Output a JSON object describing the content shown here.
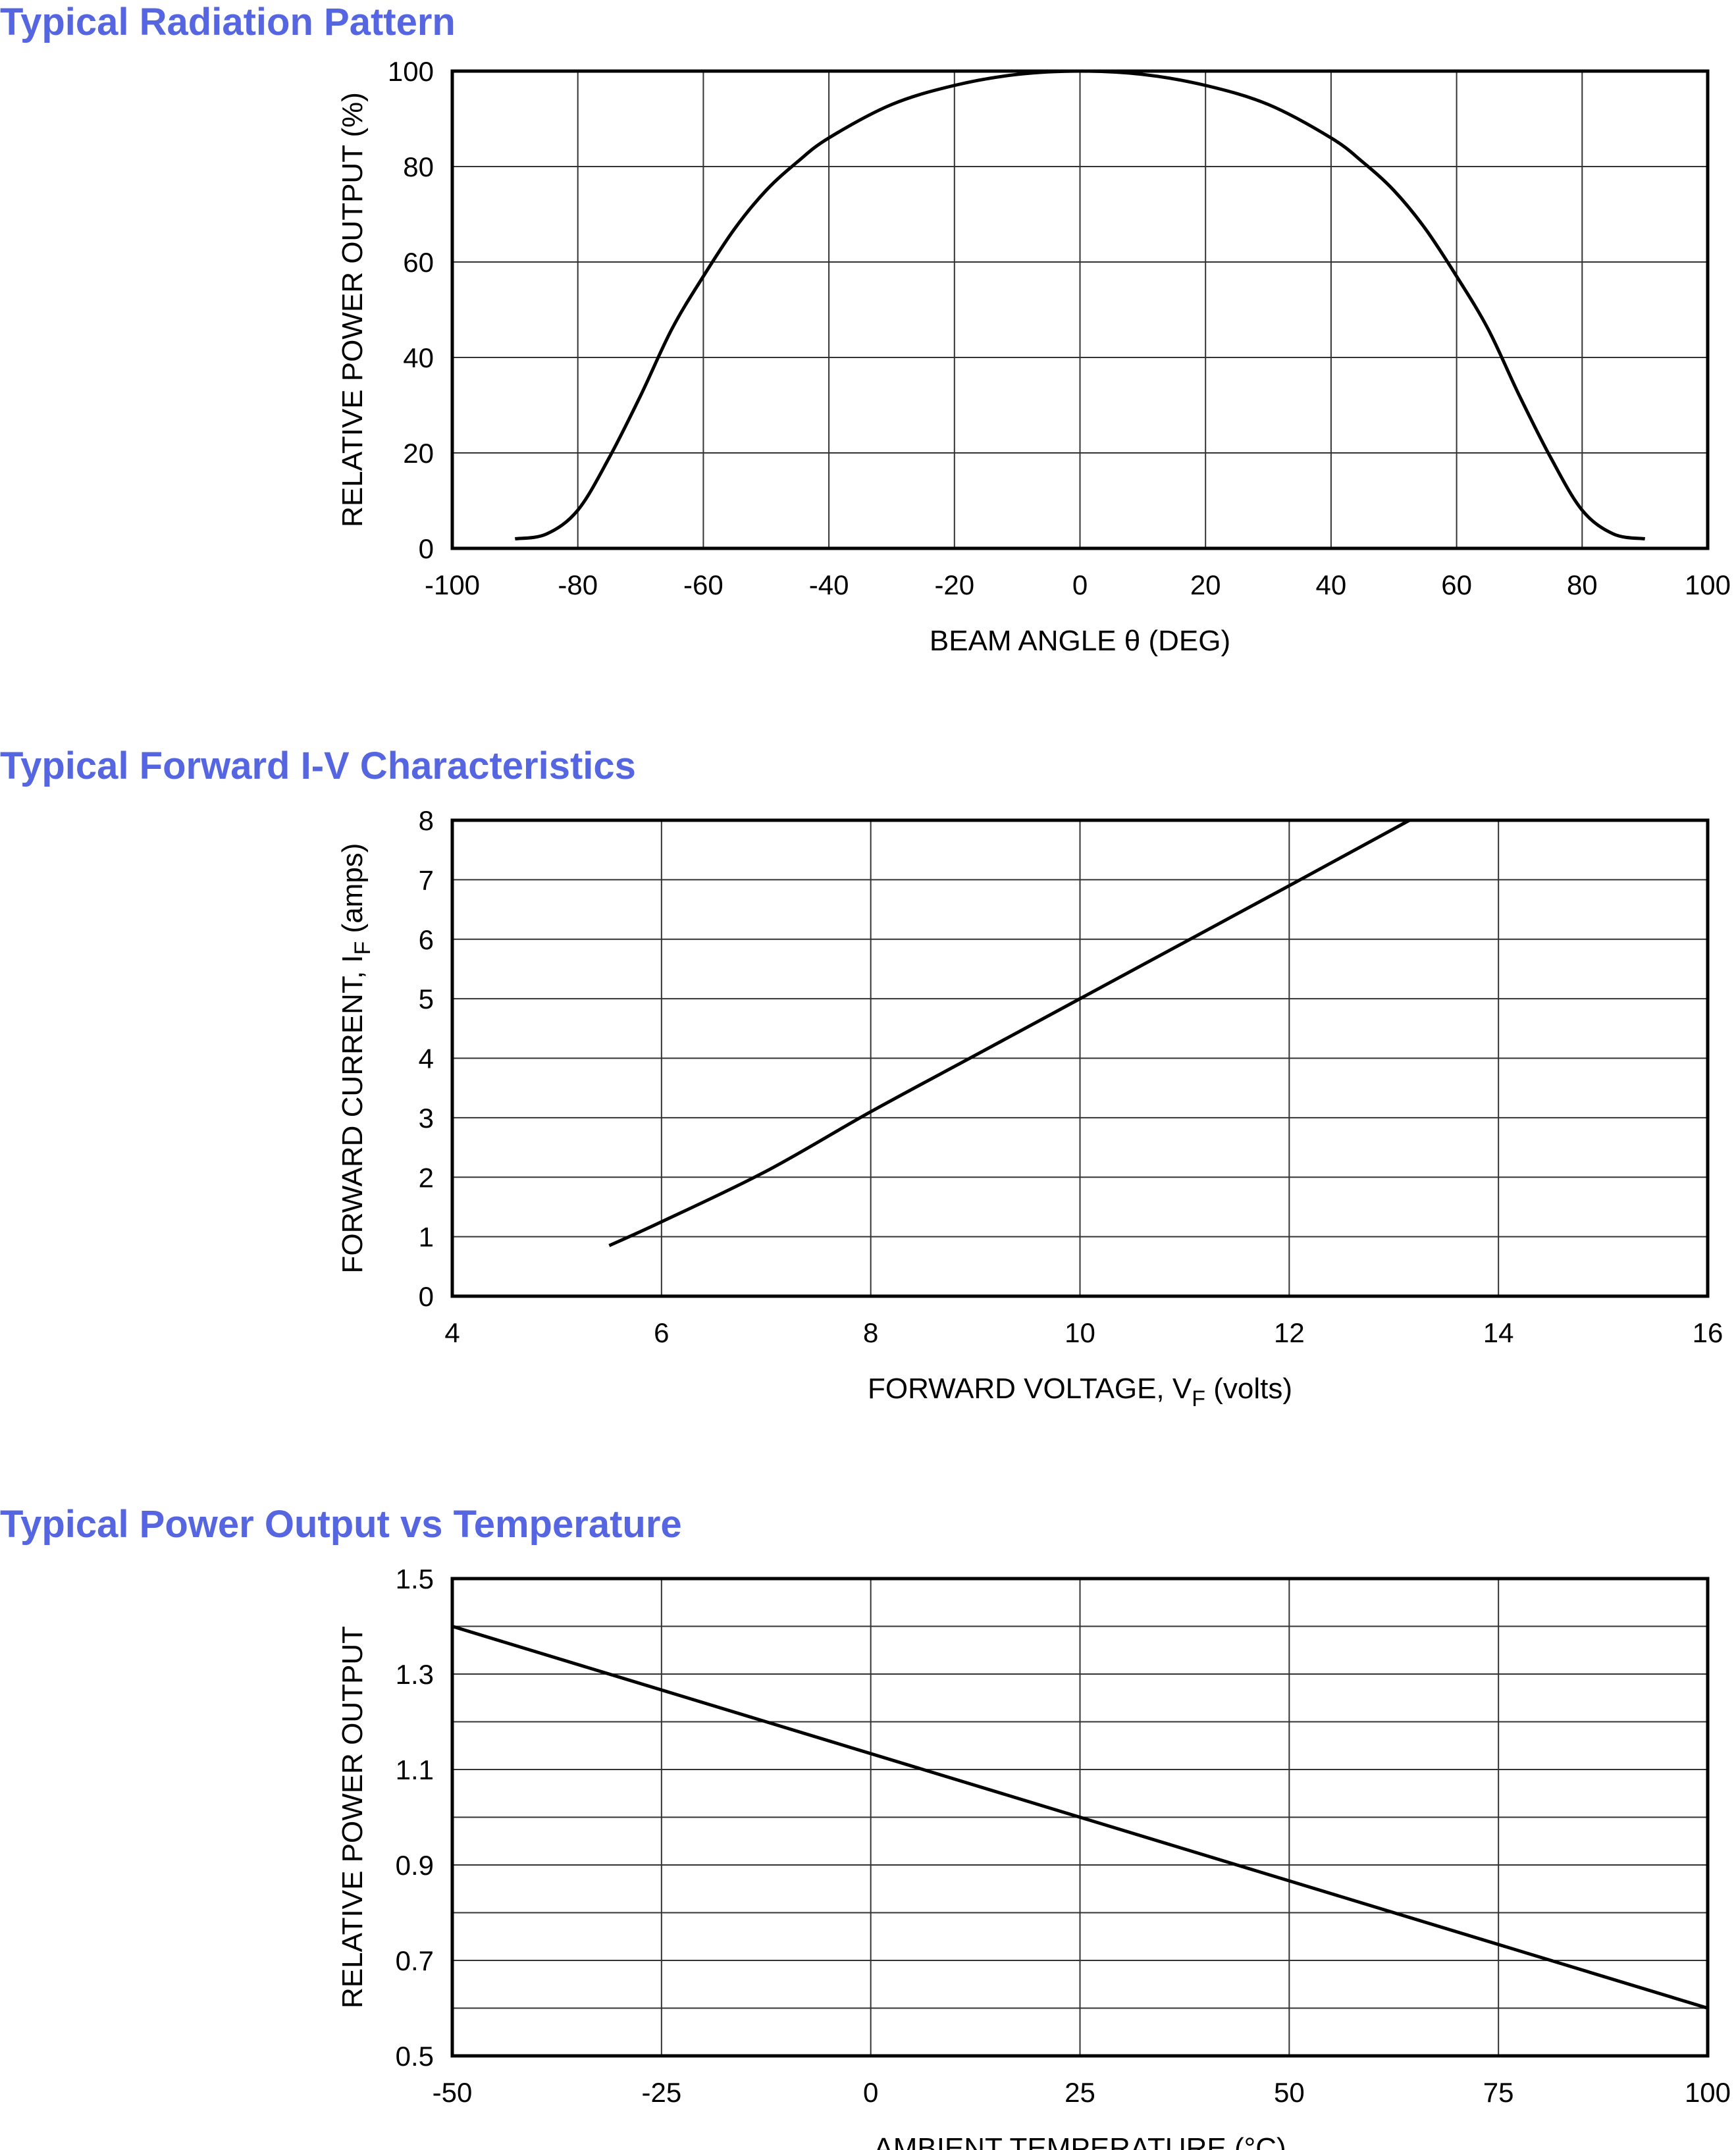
{
  "colors": {
    "title": "#5566e0",
    "line": "#000000",
    "grid": "#333333"
  },
  "chart_data": [
    {
      "type": "line",
      "title": "Typical Radiation Pattern",
      "xlabel": "BEAM ANGLE θ (DEG)",
      "ylabel": "RELATIVE POWER OUTPUT (%)",
      "xlim": [
        -100,
        100
      ],
      "ylim": [
        0,
        100
      ],
      "xticks": [
        -100,
        -80,
        -60,
        -40,
        -20,
        0,
        20,
        40,
        60,
        80,
        100
      ],
      "yticks": [
        0,
        20,
        40,
        60,
        80,
        100
      ],
      "xgrid_step": 20,
      "ygrid_step": 20,
      "grid": true,
      "x": [
        -90,
        -85,
        -80,
        -75,
        -70,
        -65,
        -60,
        -55,
        -50,
        -45,
        -40,
        -30,
        -20,
        -10,
        0,
        10,
        20,
        30,
        40,
        45,
        50,
        55,
        60,
        65,
        70,
        75,
        80,
        85,
        90
      ],
      "y": [
        2,
        3,
        8,
        19,
        32,
        46,
        57,
        67,
        75,
        81,
        86,
        93,
        97,
        99.3,
        100,
        99.3,
        97,
        93,
        86,
        81,
        75,
        67,
        57,
        46,
        32,
        19,
        8,
        3,
        2
      ]
    },
    {
      "type": "line",
      "title": "Typical Forward I-V Characteristics",
      "xlabel": "FORWARD VOLTAGE, V",
      "xlabel_sub": "F",
      "xlabel_suffix": " (volts)",
      "ylabel": "FORWARD CURRENT, I",
      "ylabel_sub": "F",
      "ylabel_suffix": " (amps)",
      "xlim": [
        4,
        16
      ],
      "ylim": [
        0,
        8
      ],
      "xticks": [
        4,
        6,
        8,
        10,
        12,
        14,
        16
      ],
      "yticks": [
        0,
        1,
        2,
        3,
        4,
        5,
        6,
        7,
        8
      ],
      "xgrid_step": 2,
      "ygrid_step": 1,
      "grid": true,
      "x": [
        5.5,
        6,
        7,
        8,
        9,
        10,
        11,
        12,
        13.15
      ],
      "y": [
        0.85,
        1.25,
        2.1,
        3.1,
        4.05,
        5.0,
        5.95,
        6.9,
        8
      ]
    },
    {
      "type": "line",
      "title": "Typical Power Output vs Temperature",
      "xlabel": "AMBIENT TEMPERATURE (°C)",
      "ylabel": "RELATIVE POWER OUTPUT",
      "xlim": [
        -50,
        100
      ],
      "ylim": [
        0.5,
        1.5
      ],
      "xticks": [
        -50,
        -25,
        0,
        25,
        50,
        75,
        100
      ],
      "yticks": [
        0.5,
        0.7,
        0.9,
        1.1,
        1.3,
        1.5
      ],
      "ytick_labels": [
        "0.5",
        "0.7",
        "0.9",
        "1.1",
        "1.3",
        "1.5"
      ],
      "xgrid_step": 25,
      "ygrid_step": 0.1,
      "grid": true,
      "x": [
        -50,
        25,
        100
      ],
      "y": [
        1.4,
        1.0,
        0.6
      ]
    }
  ]
}
